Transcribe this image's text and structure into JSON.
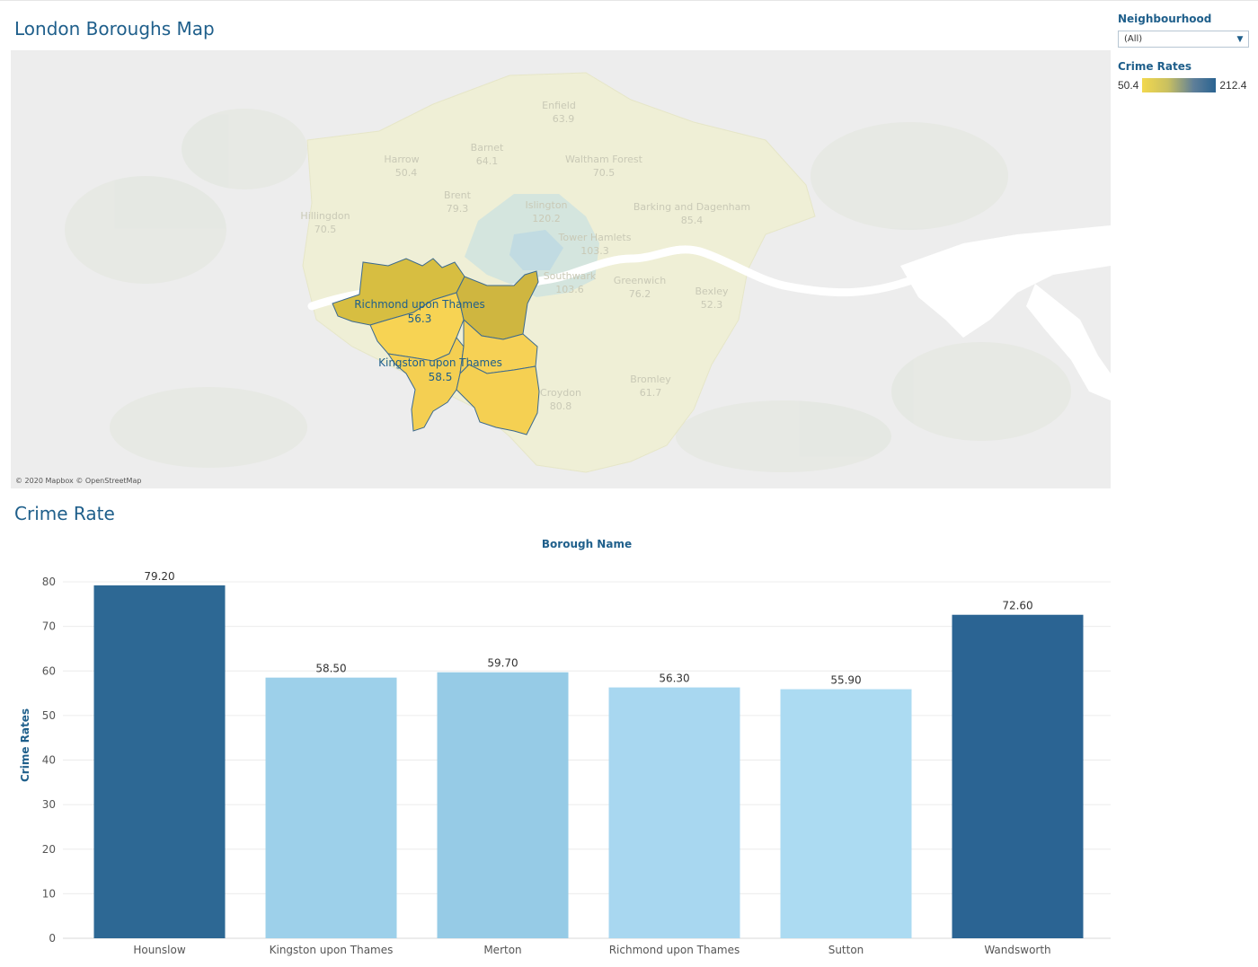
{
  "dashboard": {
    "map_title": "London Boroughs Map",
    "chart_title": "Crime Rate"
  },
  "filter": {
    "heading": "Neighbourhood",
    "selected": "(All)"
  },
  "legend": {
    "heading": "Crime Rates",
    "min_label": "50.4",
    "max_label": "212.4",
    "low_color": "#f2d84e",
    "high_color": "#2a6391"
  },
  "map": {
    "credit": "© 2020 Mapbox © OpenStreetMap",
    "labels": [
      {
        "name": "Richmond upon Thames",
        "value": "56.3"
      },
      {
        "name": "Kingston upon Thames",
        "value": "58.5"
      }
    ],
    "faded_labels": [
      {
        "name": "Enfield",
        "value": "63.9"
      },
      {
        "name": "Barnet",
        "value": "64.1"
      },
      {
        "name": "Harrow",
        "value": "50.4"
      },
      {
        "name": "Waltham Forest",
        "value": "70.5"
      },
      {
        "name": "Brent",
        "value": "79.3"
      },
      {
        "name": "Islington",
        "value": "120.2"
      },
      {
        "name": "Barking and Dagenham",
        "value": "85.4"
      },
      {
        "name": "Hillingdon",
        "value": "70.5"
      },
      {
        "name": "Tower Hamlets",
        "value": "103.3"
      },
      {
        "name": "Southwark",
        "value": "103.6"
      },
      {
        "name": "Greenwich",
        "value": "76.2"
      },
      {
        "name": "Bexley",
        "value": "52.3"
      },
      {
        "name": "Croydon",
        "value": "80.8"
      },
      {
        "name": "Bromley",
        "value": "61.7"
      }
    ],
    "highlight_color": "#f7d353",
    "highlight_dark_color": "#d7be41",
    "water_color": "#ffffff",
    "land_color": "#ededed",
    "muted_borough_color": "#efefd6"
  },
  "chart_data": {
    "type": "bar",
    "title": "Crime Rate",
    "top_axis_label": "Borough Name",
    "ylabel": "Crime Rates",
    "categories": [
      "Hounslow",
      "Kingston upon Thames",
      "Merton",
      "Richmond upon Thames",
      "Sutton",
      "Wandsworth"
    ],
    "values": [
      79.2,
      58.5,
      59.7,
      56.3,
      55.9,
      72.6
    ],
    "value_labels": [
      "79.20",
      "58.50",
      "59.70",
      "56.30",
      "55.90",
      "72.60"
    ],
    "colors": [
      "#2d6894",
      "#9dd0ea",
      "#96cbe6",
      "#a8d7f0",
      "#acdbf2",
      "#2b6493"
    ],
    "ylim": [
      0,
      80
    ],
    "yticks": [
      0,
      10,
      20,
      30,
      40,
      50,
      60,
      70,
      80
    ],
    "grid": true
  }
}
